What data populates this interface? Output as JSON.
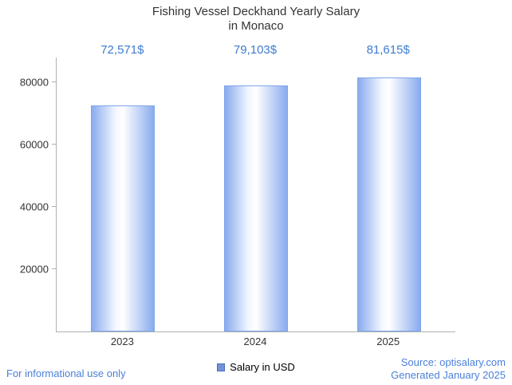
{
  "title": {
    "line1": "Fishing Vessel Deckhand Yearly Salary",
    "line2": "in Monaco"
  },
  "legend": {
    "label": "Salary in USD"
  },
  "footer": {
    "left": "For informational use only",
    "source": "Source: optisalary.com",
    "generated": "Generated January 2025"
  },
  "colors": {
    "accent_text": "#3e7bd0",
    "footer_text": "#4b80d9",
    "bar_edge": "#8aabee",
    "bar_center": "#ffffff",
    "legend_swatch": "#7193d6",
    "axis": "#b0b0b0",
    "title_text": "#333333"
  },
  "chart_data": {
    "type": "bar",
    "title": "Fishing Vessel Deckhand Yearly Salary in Monaco",
    "categories": [
      "2023",
      "2024",
      "2025"
    ],
    "series": [
      {
        "name": "Salary in USD",
        "values": [
          72571,
          79103,
          81615
        ]
      }
    ],
    "value_labels": [
      "72,571$",
      "79,103$",
      "81,615$"
    ],
    "xlabel": "",
    "ylabel": "",
    "ylim": [
      0,
      88000
    ],
    "yticks": [
      20000,
      40000,
      60000,
      80000
    ],
    "ytick_labels": [
      "20000",
      "40000",
      "60000",
      "80000"
    ],
    "grid": false,
    "legend_position": "bottom"
  }
}
